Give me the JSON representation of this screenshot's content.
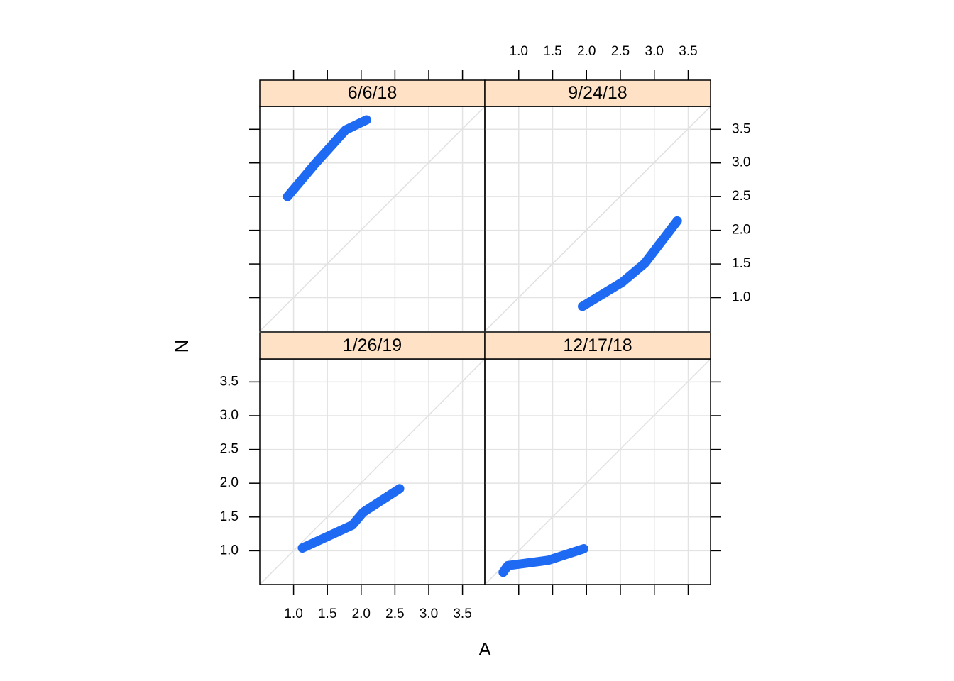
{
  "chart_data": {
    "type": "qq",
    "xlabel": "A",
    "ylabel": "N",
    "xlim": [
      0.5,
      3.83
    ],
    "ylim": [
      0.5,
      3.84
    ],
    "xticks": [
      {
        "value": 1,
        "label": "1.0"
      },
      1.5,
      {
        "value": 2,
        "label": "2.0"
      },
      2.5,
      {
        "value": 3,
        "label": "3.0"
      },
      3.5
    ],
    "yticks": [
      {
        "value": 1,
        "label": "1.0"
      },
      1.5,
      {
        "value": 2,
        "label": "2.0"
      },
      2.5,
      {
        "value": 3,
        "label": "3.0"
      },
      3.5
    ],
    "grid": true,
    "color": "#1f6af3",
    "strip_color": "#ffe2c6",
    "panels": [
      {
        "title": "6/6/18",
        "x": [
          0.91,
          1.33,
          1.77,
          2.08
        ],
        "y": [
          2.5,
          3.0,
          3.49,
          3.64
        ]
      },
      {
        "title": "9/24/18",
        "x": [
          1.94,
          2.53,
          2.86,
          3.34
        ],
        "y": [
          0.87,
          1.23,
          1.51,
          2.14
        ]
      },
      {
        "title": "1/26/19",
        "x": [
          1.13,
          1.87,
          2.03,
          2.57
        ],
        "y": [
          1.04,
          1.38,
          1.57,
          1.92
        ]
      },
      {
        "title": "12/17/18",
        "x": [
          0.77,
          0.84,
          1.44,
          1.96
        ],
        "y": [
          0.68,
          0.78,
          0.86,
          1.03
        ]
      }
    ]
  }
}
